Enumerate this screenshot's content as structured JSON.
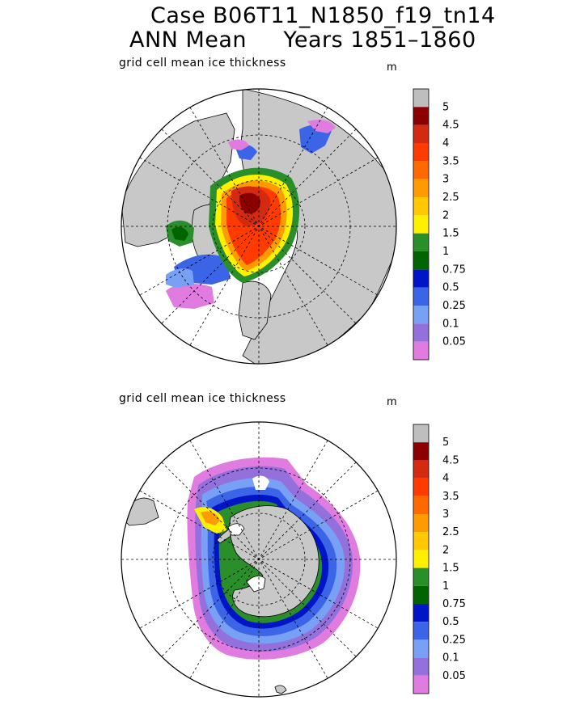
{
  "title": {
    "line1": "Case B06T11_N1850_f19_tn14",
    "line2": "ANN Mean     Years 1851–1860"
  },
  "panels": [
    {
      "name": "arctic",
      "variable_label": "grid cell mean ice thickness",
      "unit": "m",
      "colorbar_labels": [
        "5",
        "4.5",
        "4",
        "3.5",
        "3",
        "2.5",
        "2",
        "1.5",
        "1",
        "0.75",
        "0.5",
        "0.25",
        "0.1",
        "0.05"
      ]
    },
    {
      "name": "antarctic",
      "variable_label": "grid cell mean ice thickness",
      "unit": "m",
      "colorbar_labels": [
        "5",
        "4.5",
        "4",
        "3.5",
        "3",
        "2.5",
        "2",
        "1.5",
        "1",
        "0.75",
        "0.5",
        "0.25",
        "0.1",
        "0.05"
      ]
    }
  ],
  "colorbar_colors": [
    "#bebebe",
    "#8b0000",
    "#d42a12",
    "#ff3b00",
    "#ff6a00",
    "#ff9a00",
    "#ffc800",
    "#fff000",
    "#2a8f2a",
    "#006400",
    "#0014c8",
    "#3c64e6",
    "#78a0f5",
    "#9370db",
    "#e07be0"
  ],
  "colors": {
    "land": "#c8c8c8",
    "ocean": "#ffffff",
    "grid": "#000000"
  }
}
